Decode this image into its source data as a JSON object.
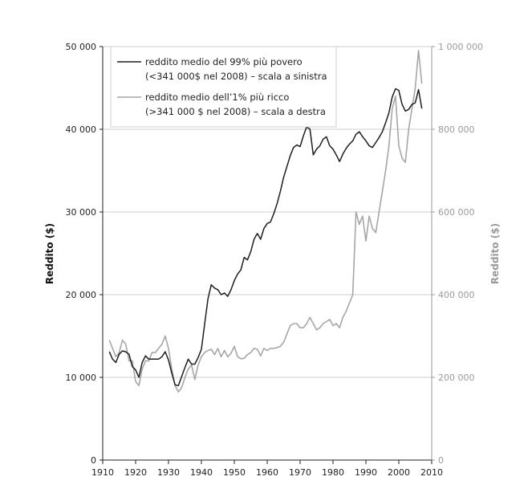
{
  "chart_data": {
    "type": "line",
    "ylabel_left": "Reddito ($)",
    "ylabel_right": "Reddito ($)",
    "xlim": [
      1910,
      2010
    ],
    "ylim_left": [
      0,
      50000
    ],
    "ylim_right": [
      0,
      1000000
    ],
    "x_ticks": [
      "1910",
      "1920",
      "1930",
      "1940",
      "1950",
      "1960",
      "1970",
      "1980",
      "1990",
      "2000",
      "2010"
    ],
    "y_ticks_left": [
      "0",
      "10 000",
      "20 000",
      "30 000",
      "40 000",
      "50 000"
    ],
    "y_ticks_right": [
      "0",
      "200 000",
      "400 000",
      "600 000",
      "800 000",
      "1 000 000"
    ],
    "grid": "horizontal",
    "legend": {
      "position": "top-left",
      "entries": [
        {
          "line1": "reddito medio del 99% più povero",
          "line2": "(<341 000$ nel 2008) – scala a sinistra"
        },
        {
          "line1": "reddito medio dell’1% più ricco",
          "line2": "(>341 000 $ nel 2008) – scala a destra"
        }
      ]
    },
    "colors": {
      "bottom99": "#1e1e1e",
      "top1": "#a6a6a6",
      "grid": "#cfcfcf",
      "right_axis": "#9a9a9a"
    },
    "series": [
      {
        "name": "reddito medio del 99% più povero",
        "axis": "left",
        "x": [
          1912,
          1913,
          1914,
          1915,
          1916,
          1917,
          1918,
          1919,
          1920,
          1921,
          1922,
          1923,
          1924,
          1925,
          1926,
          1927,
          1928,
          1929,
          1930,
          1931,
          1932,
          1933,
          1934,
          1935,
          1936,
          1937,
          1938,
          1939,
          1940,
          1941,
          1942,
          1943,
          1944,
          1945,
          1946,
          1947,
          1948,
          1949,
          1950,
          1951,
          1952,
          1953,
          1954,
          1955,
          1956,
          1957,
          1958,
          1959,
          1960,
          1961,
          1962,
          1963,
          1964,
          1965,
          1966,
          1967,
          1968,
          1969,
          1970,
          1971,
          1972,
          1973,
          1974,
          1975,
          1976,
          1977,
          1978,
          1979,
          1980,
          1981,
          1982,
          1983,
          1984,
          1985,
          1986,
          1987,
          1988,
          1989,
          1990,
          1991,
          1992,
          1993,
          1994,
          1995,
          1996,
          1997,
          1998,
          1999,
          2000,
          2001,
          2002,
          2003,
          2004,
          2005,
          2006,
          2007
        ],
        "y": [
          13100,
          12200,
          11800,
          12800,
          13200,
          13100,
          12800,
          11300,
          10900,
          10000,
          11800,
          12600,
          12200,
          12200,
          12200,
          12200,
          12500,
          13100,
          12100,
          10500,
          9100,
          9000,
          10100,
          11200,
          12200,
          11600,
          11600,
          12400,
          13400,
          16500,
          19500,
          21200,
          20800,
          20600,
          20000,
          20200,
          19800,
          20600,
          21700,
          22500,
          23000,
          24500,
          24200,
          25200,
          26700,
          27400,
          26700,
          28000,
          28600,
          28800,
          29800,
          31000,
          32500,
          34200,
          35500,
          36800,
          37800,
          38100,
          37900,
          39200,
          40300,
          40000,
          36900,
          37600,
          38000,
          38800,
          39100,
          38000,
          37600,
          36900,
          36100,
          37000,
          37700,
          38200,
          38600,
          39400,
          39700,
          39100,
          38600,
          38000,
          37800,
          38400,
          39000,
          39700,
          40800,
          42000,
          43900,
          44900,
          44700,
          43000,
          42200,
          42400,
          43000,
          43200,
          44800,
          42500
        ]
      },
      {
        "name": "reddito medio dell’1% più ricco",
        "axis": "right",
        "x": [
          1912,
          1913,
          1914,
          1915,
          1916,
          1917,
          1918,
          1919,
          1920,
          1921,
          1922,
          1923,
          1924,
          1925,
          1926,
          1927,
          1928,
          1929,
          1930,
          1931,
          1932,
          1933,
          1934,
          1935,
          1936,
          1937,
          1938,
          1939,
          1940,
          1941,
          1942,
          1943,
          1944,
          1945,
          1946,
          1947,
          1948,
          1949,
          1950,
          1951,
          1952,
          1953,
          1954,
          1955,
          1956,
          1957,
          1958,
          1959,
          1960,
          1961,
          1962,
          1963,
          1964,
          1965,
          1966,
          1967,
          1968,
          1969,
          1970,
          1971,
          1972,
          1973,
          1974,
          1975,
          1976,
          1977,
          1978,
          1979,
          1980,
          1981,
          1982,
          1983,
          1984,
          1985,
          1986,
          1987,
          1988,
          1989,
          1990,
          1991,
          1992,
          1993,
          1994,
          1995,
          1996,
          1997,
          1998,
          1999,
          2000,
          2001,
          2002,
          2003,
          2004,
          2005,
          2006,
          2007
        ],
        "y": [
          290000,
          270000,
          250000,
          260000,
          290000,
          280000,
          240000,
          240000,
          190000,
          180000,
          220000,
          240000,
          240000,
          260000,
          260000,
          270000,
          280000,
          300000,
          270000,
          220000,
          180000,
          165000,
          175000,
          200000,
          220000,
          230000,
          195000,
          230000,
          250000,
          260000,
          265000,
          268000,
          255000,
          270000,
          250000,
          265000,
          250000,
          258000,
          275000,
          250000,
          245000,
          246000,
          255000,
          260000,
          270000,
          268000,
          252000,
          270000,
          265000,
          270000,
          270000,
          272000,
          275000,
          285000,
          305000,
          325000,
          330000,
          330000,
          320000,
          320000,
          330000,
          345000,
          330000,
          315000,
          320000,
          330000,
          335000,
          340000,
          325000,
          330000,
          320000,
          345000,
          360000,
          380000,
          400000,
          600000,
          570000,
          590000,
          530000,
          590000,
          560000,
          550000,
          600000,
          650000,
          700000,
          760000,
          850000,
          880000,
          760000,
          730000,
          720000,
          800000,
          850000,
          900000,
          990000,
          910000
        ]
      }
    ]
  }
}
